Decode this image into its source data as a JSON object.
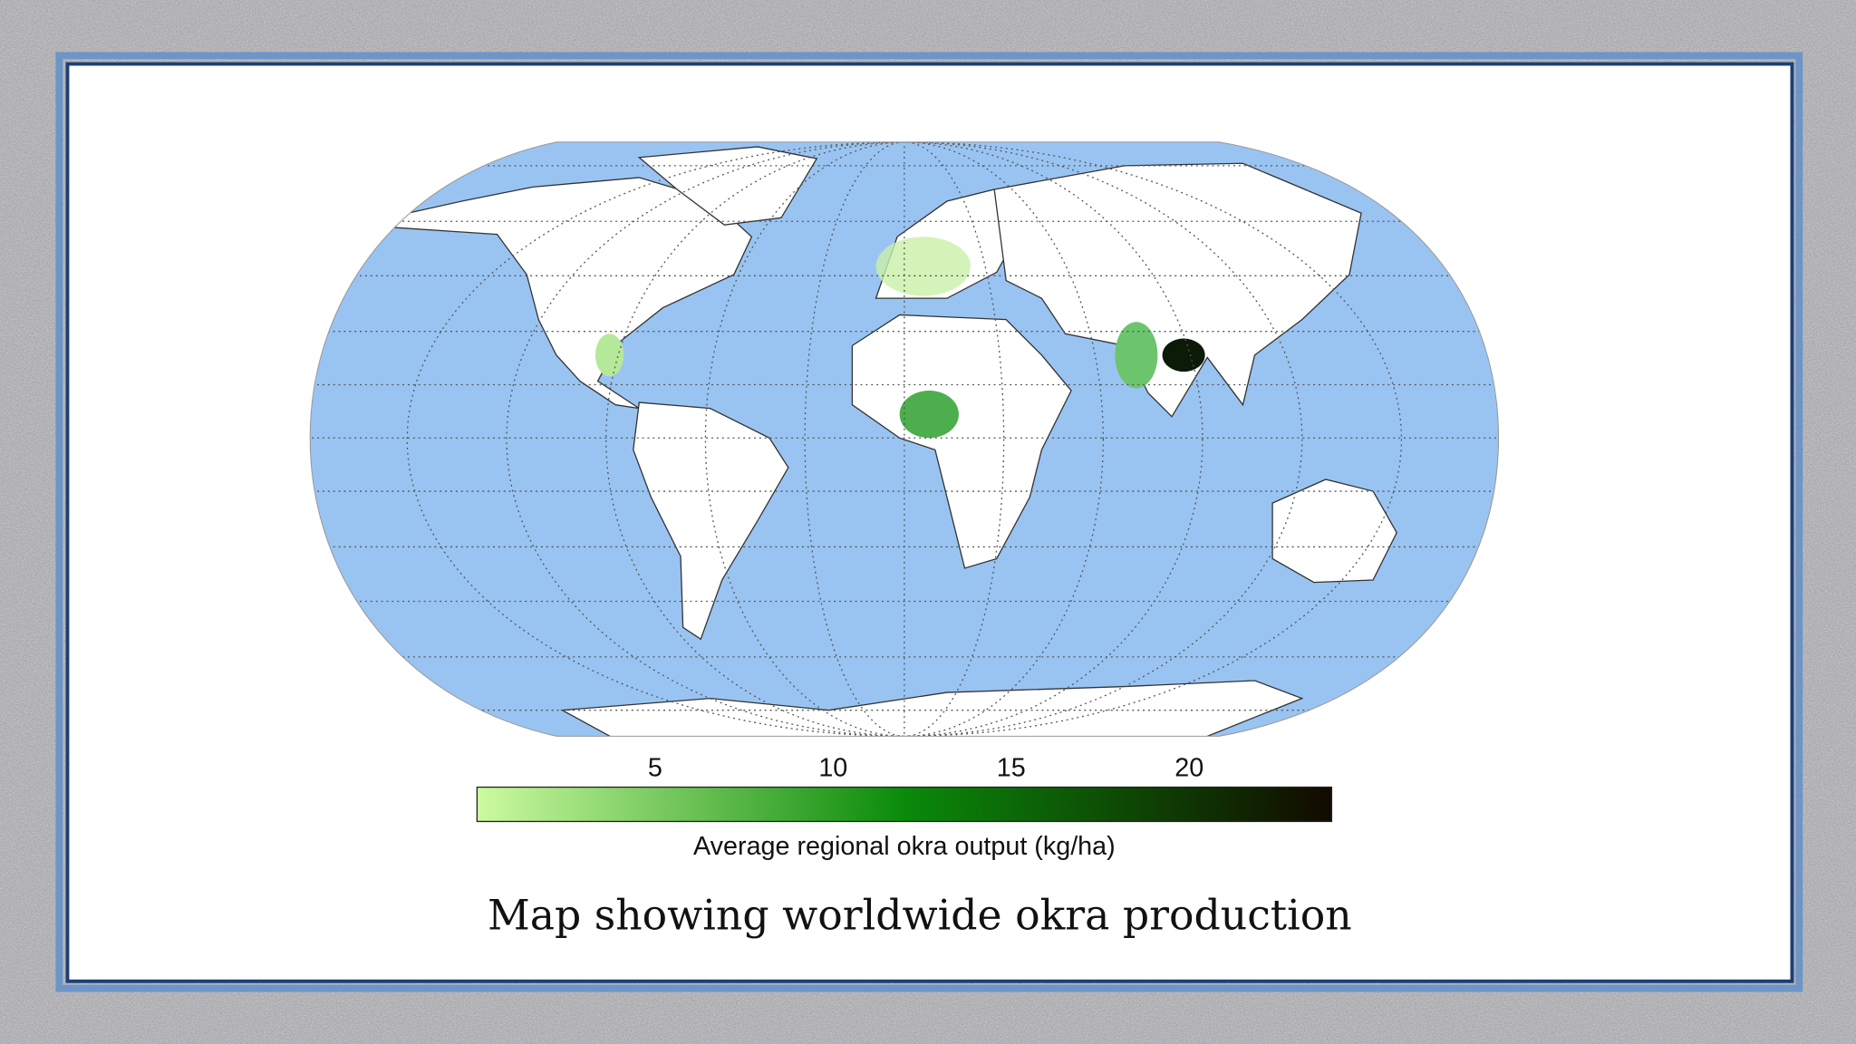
{
  "map": {
    "colorbar": {
      "range": [
        0,
        24
      ],
      "ticks": [
        5,
        10,
        15,
        20
      ],
      "label": "Average regional okra output (kg/ha)",
      "colors": [
        "#ccfaa0",
        "#0a8a0a",
        "#120a00"
      ]
    }
  },
  "caption": "Map showing worldwide okra production"
}
